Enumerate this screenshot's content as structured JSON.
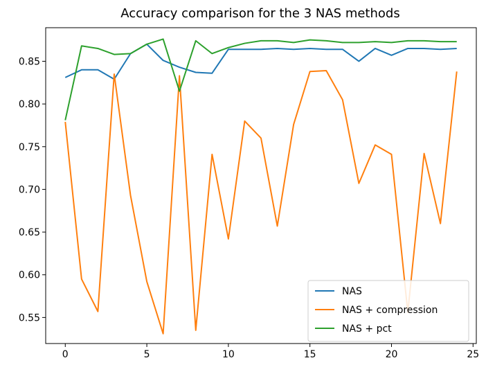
{
  "chart_data": {
    "type": "line",
    "title": "Accuracy comparison for the 3 NAS methods",
    "xlabel": "",
    "ylabel": "",
    "xlim": [
      -1.2,
      25.2
    ],
    "ylim": [
      0.5195,
      0.8893
    ],
    "xticks": [
      0,
      5,
      10,
      15,
      20,
      25
    ],
    "yticks": [
      0.55,
      0.6,
      0.65,
      0.7,
      0.75,
      0.8,
      0.85
    ],
    "grid": false,
    "legend_position": "lower right",
    "x": [
      0,
      1,
      2,
      3,
      4,
      5,
      6,
      7,
      8,
      9,
      10,
      11,
      12,
      13,
      14,
      15,
      16,
      17,
      18,
      19,
      20,
      21,
      22,
      23,
      24
    ],
    "series": [
      {
        "name": "NAS",
        "color": "#1f77b4",
        "values": [
          0.831,
          0.84,
          0.84,
          0.829,
          0.859,
          0.87,
          0.851,
          0.843,
          0.837,
          0.836,
          0.864,
          0.864,
          0.864,
          0.865,
          0.864,
          0.865,
          0.864,
          0.864,
          0.85,
          0.865,
          0.857,
          0.865,
          0.865,
          0.864,
          0.865
        ]
      },
      {
        "name": "NAS + compression",
        "color": "#ff7f0e",
        "values": [
          0.779,
          0.595,
          0.557,
          0.835,
          0.693,
          0.592,
          0.531,
          0.833,
          0.535,
          0.741,
          0.642,
          0.78,
          0.76,
          0.657,
          0.776,
          0.838,
          0.839,
          0.805,
          0.707,
          0.752,
          0.741,
          0.556,
          0.742,
          0.66,
          0.838
        ]
      },
      {
        "name": "NAS + pct",
        "color": "#2ca02c",
        "values": [
          0.781,
          0.868,
          0.865,
          0.858,
          0.859,
          0.87,
          0.876,
          0.815,
          0.874,
          0.859,
          0.866,
          0.871,
          0.874,
          0.874,
          0.872,
          0.875,
          0.874,
          0.872,
          0.872,
          0.873,
          0.872,
          0.874,
          0.874,
          0.873,
          0.873
        ]
      }
    ]
  }
}
